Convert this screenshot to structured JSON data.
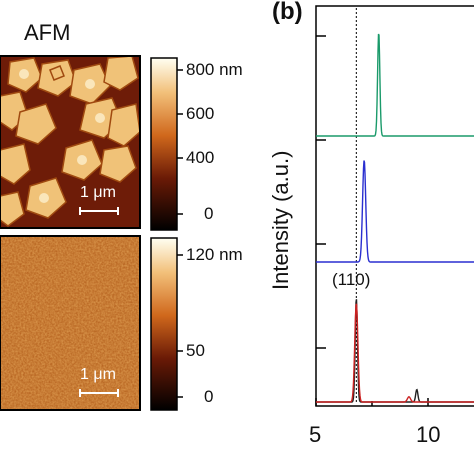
{
  "figure": {
    "afm_title": "AFM",
    "panel_label": "(b)"
  },
  "colorbar_top": {
    "ticks": [
      "800 nm",
      "600",
      "400",
      "0"
    ]
  },
  "colorbar_bottom": {
    "ticks": [
      "120 nm",
      "50",
      "0"
    ]
  },
  "scalebar_top": "1 μm",
  "scalebar_bottom": "1 μm",
  "chart_data": {
    "type": "line",
    "ylabel": "Intensity (a.u.)",
    "x_ticks": [
      "5",
      "10"
    ],
    "xlim": [
      5,
      12
    ],
    "reference_line_x": 6.8,
    "peak_annotation": "(110)",
    "series": [
      {
        "color": "#1a9a6a",
        "peaks": [
          {
            "x": 7.8,
            "height": 1.0
          }
        ]
      },
      {
        "color": "#2a2fd0",
        "peaks": [
          {
            "x": 7.15,
            "height": 1.0
          }
        ]
      },
      {
        "color": "#222222",
        "peaks": [
          {
            "x": 6.8,
            "height": 1.0
          },
          {
            "x": 9.5,
            "height": 0.12
          }
        ]
      },
      {
        "color": "#cc2222",
        "peaks": [
          {
            "x": 6.8,
            "height": 0.95
          },
          {
            "x": 9.15,
            "height": 0.05
          }
        ]
      }
    ]
  }
}
